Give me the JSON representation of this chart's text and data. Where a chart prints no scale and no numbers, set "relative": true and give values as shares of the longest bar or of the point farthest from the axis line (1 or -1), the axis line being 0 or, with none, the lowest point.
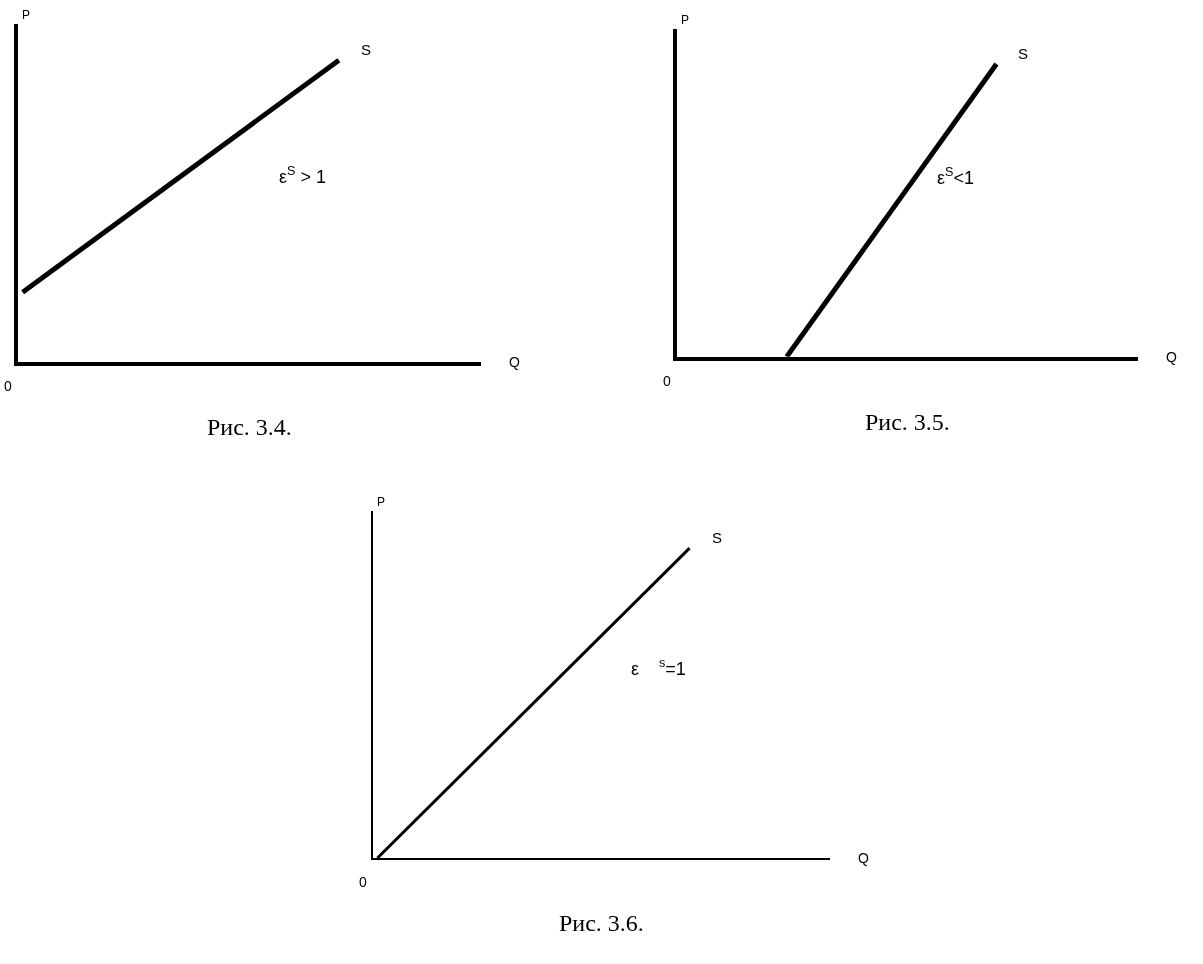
{
  "chart_data": [
    {
      "type": "line",
      "relative": true,
      "title": "Рис. 3.4.",
      "xlabel": "Q",
      "ylabel": "P",
      "categories": [
        null,
        null
      ],
      "series": [
        {
          "name": "S",
          "color": "#000000",
          "values": [
            0.23,
            1
          ]
        }
      ],
      "annotations": [
        "ε$^{S}$ > 1",
        "0"
      ],
      "legend": false,
      "marker": "none",
      "line_style": "solid"
    },
    {
      "type": "line",
      "relative": true,
      "title": "Рис. 3.5.",
      "xlabel": "Q",
      "ylabel": "P",
      "categories": [
        null,
        null,
        null,
        null
      ],
      "series": [
        {
          "name": "S",
          "color": "#000000",
          "values": [
            null,
            0,
            0.5,
            1
          ]
        }
      ],
      "annotations": [
        "ε$^{S}$<1",
        "0"
      ],
      "legend": false,
      "marker": "none",
      "line_style": "solid"
    },
    {
      "type": "line",
      "relative": true,
      "title": "Рис. 3.6.",
      "xlabel": "Q",
      "ylabel": "P",
      "categories": [
        null,
        null
      ],
      "series": [
        {
          "name": "S",
          "color": "#000000",
          "values": [
            0,
            1
          ]
        }
      ],
      "annotations": [
        "ε    $^{s}$=1",
        "0"
      ],
      "legend": false,
      "marker": "none",
      "line_style": "solid"
    }
  ]
}
